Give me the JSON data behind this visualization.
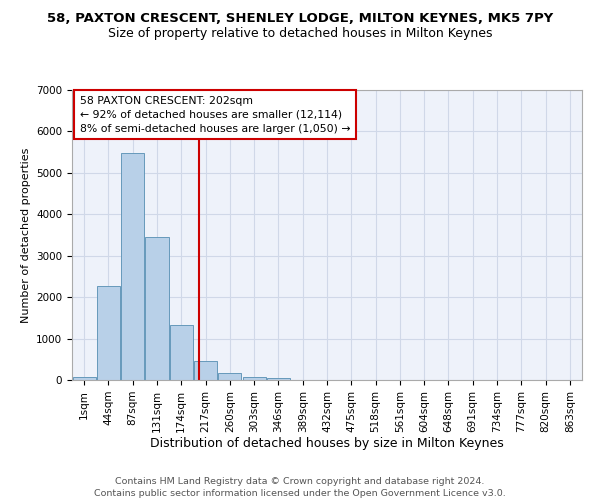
{
  "title": "58, PAXTON CRESCENT, SHENLEY LODGE, MILTON KEYNES, MK5 7PY",
  "subtitle": "Size of property relative to detached houses in Milton Keynes",
  "xlabel": "Distribution of detached houses by size in Milton Keynes",
  "ylabel": "Number of detached properties",
  "footer_line1": "Contains HM Land Registry data © Crown copyright and database right 2024.",
  "footer_line2": "Contains public sector information licensed under the Open Government Licence v3.0.",
  "annotation_line1": "58 PAXTON CRESCENT: 202sqm",
  "annotation_line2": "← 92% of detached houses are smaller (12,114)",
  "annotation_line3": "8% of semi-detached houses are larger (1,050) →",
  "categories": [
    "1sqm",
    "44sqm",
    "87sqm",
    "131sqm",
    "174sqm",
    "217sqm",
    "260sqm",
    "303sqm",
    "346sqm",
    "389sqm",
    "432sqm",
    "475sqm",
    "518sqm",
    "561sqm",
    "604sqm",
    "648sqm",
    "691sqm",
    "734sqm",
    "777sqm",
    "820sqm",
    "863sqm"
  ],
  "values": [
    75,
    2280,
    5480,
    3450,
    1320,
    460,
    160,
    80,
    45,
    0,
    0,
    0,
    0,
    0,
    0,
    0,
    0,
    0,
    0,
    0,
    0
  ],
  "bar_color": "#b8d0e8",
  "bar_edge_color": "#6699bb",
  "vline_color": "#cc0000",
  "vline_x": 4.72,
  "ylim": [
    0,
    7000
  ],
  "yticks": [
    0,
    1000,
    2000,
    3000,
    4000,
    5000,
    6000,
    7000
  ],
  "grid_color": "#d0d8e8",
  "bg_color": "#eef2fa",
  "title_fontsize": 9.5,
  "subtitle_fontsize": 9,
  "xlabel_fontsize": 9,
  "ylabel_fontsize": 8,
  "tick_fontsize": 7.5,
  "annotation_fontsize": 7.8,
  "footer_fontsize": 6.8
}
